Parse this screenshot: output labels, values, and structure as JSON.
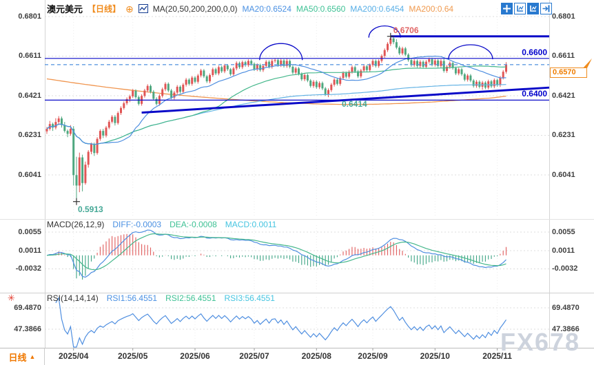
{
  "header": {
    "symbol": "澳元美元",
    "period": "【日线】",
    "ma_settings": "MA(20,50,200,200,0,0)",
    "ma20": "MA20:0.6524",
    "ma50": "MA50:0.6560",
    "ma200": "MA200:0.6454",
    "ma200b": "MA200:0.64",
    "icons": {
      "add": "⊕",
      "period_arrow": "▲",
      "burst": "✳"
    }
  },
  "toolbar": {
    "buttons": [
      "pan",
      "measure",
      "auto-scale",
      "shift-right"
    ]
  },
  "colors": {
    "up": "#e05555",
    "down": "#4ea77f",
    "ma20": "#4e8ee0",
    "ma50": "#44b78b",
    "ma200": "#62b2e4",
    "ma200b": "#f0954f",
    "annotation": "#0a0ac8",
    "dashed": "#4f8fde",
    "macd_diff": "#4e8ee0",
    "macd_dea": "#44b78b",
    "hist_pos": "#e05a5a",
    "hist_neg": "#3ca383",
    "rsi": "#4e8ee0",
    "accent_orange": "#f08c1e"
  },
  "chart_data": [
    {
      "type": "candlestick",
      "title": "澳元美元 日线",
      "y_ticks": [
        "0.6801",
        "0.6611",
        "0.6421",
        "0.6231",
        "0.6041"
      ],
      "x_ticks": [
        "2025/04",
        "2025/05",
        "2025/06",
        "2025/07",
        "2025/08",
        "2025/09",
        "2025/10",
        "2025/11"
      ],
      "tick_candle_indices": [
        9,
        29,
        50,
        70,
        91,
        110,
        131,
        152
      ],
      "ma_windows": {
        "ma20": 20,
        "ma50": 50,
        "ma200": 200
      },
      "ma200b_sampled": [
        0.6502,
        0.6481,
        0.6462,
        0.6445,
        0.643,
        0.6417,
        0.6406,
        0.6396,
        0.6388,
        0.6382,
        0.6379,
        0.638,
        0.6384,
        0.6391,
        0.64,
        0.641,
        0.6419
      ],
      "annotations": {
        "high": {
          "text": "0.6706",
          "price": 0.6706,
          "idx": 116
        },
        "low": {
          "text": "0.5913",
          "price": 0.5913,
          "idx": 10
        },
        "touch": {
          "text": "0.6414",
          "price": 0.6414,
          "idx": 100
        },
        "resistance": {
          "text": "0.6600",
          "price": 0.66
        },
        "support": {
          "text": "0.6400",
          "price": 0.64
        },
        "current": {
          "text": "0.6570",
          "price": 0.657
        },
        "trendline": {
          "from_idx": 32,
          "from_price": 0.634,
          "to_price": 0.646
        },
        "arcs": [
          {
            "idx": 79,
            "base_price": 0.6592,
            "rx": 31,
            "ry": 24
          },
          {
            "idx": 114,
            "base_price": 0.67,
            "rx": 23,
            "ry": 17
          },
          {
            "idx": 143,
            "base_price": 0.6596,
            "rx": 32,
            "ry": 21
          }
        ],
        "crosses": [
          {
            "idx": 116,
            "price": 0.6706
          },
          {
            "idx": 10,
            "price": 0.5913
          }
        ]
      },
      "candles": [
        [
          0.625,
          0.6271,
          0.6238,
          0.6262
        ],
        [
          0.6262,
          0.63,
          0.6254,
          0.6285
        ],
        [
          0.6285,
          0.6292,
          0.6252,
          0.6268
        ],
        [
          0.6268,
          0.6313,
          0.6259,
          0.6295
        ],
        [
          0.6295,
          0.6323,
          0.6281,
          0.6312
        ],
        [
          0.6312,
          0.6321,
          0.6268,
          0.628
        ],
        [
          0.628,
          0.6295,
          0.6244,
          0.6252
        ],
        [
          0.6252,
          0.6259,
          0.6222,
          0.6238
        ],
        [
          0.6238,
          0.628,
          0.6229,
          0.6262
        ],
        [
          0.6262,
          0.6275,
          0.599,
          0.604
        ],
        [
          0.604,
          0.6128,
          0.5913,
          0.599
        ],
        [
          0.599,
          0.6148,
          0.5958,
          0.6125
        ],
        [
          0.6125,
          0.6138,
          0.5962,
          0.6002
        ],
        [
          0.6002,
          0.6105,
          0.5994,
          0.609
        ],
        [
          0.609,
          0.616,
          0.6076,
          0.6152
        ],
        [
          0.6152,
          0.6196,
          0.614,
          0.6188
        ],
        [
          0.6188,
          0.6196,
          0.6132,
          0.6146
        ],
        [
          0.6146,
          0.6222,
          0.6138,
          0.6214
        ],
        [
          0.6214,
          0.626,
          0.6205,
          0.6252
        ],
        [
          0.6252,
          0.6262,
          0.6218,
          0.623
        ],
        [
          0.623,
          0.6276,
          0.6221,
          0.6268
        ],
        [
          0.6268,
          0.6305,
          0.626,
          0.6296
        ],
        [
          0.6296,
          0.6328,
          0.6288,
          0.632
        ],
        [
          0.632,
          0.6328,
          0.6278,
          0.629
        ],
        [
          0.629,
          0.6346,
          0.6282,
          0.6338
        ],
        [
          0.6338,
          0.637,
          0.6329,
          0.6362
        ],
        [
          0.6362,
          0.6394,
          0.6354,
          0.6385
        ],
        [
          0.6385,
          0.6413,
          0.6376,
          0.6405
        ],
        [
          0.6405,
          0.6426,
          0.639,
          0.6418
        ],
        [
          0.6418,
          0.6453,
          0.641,
          0.6445
        ],
        [
          0.6445,
          0.6452,
          0.6406,
          0.6414
        ],
        [
          0.6414,
          0.6421,
          0.6374,
          0.6382
        ],
        [
          0.6382,
          0.6428,
          0.6373,
          0.642
        ],
        [
          0.642,
          0.6454,
          0.6412,
          0.6446
        ],
        [
          0.6446,
          0.6476,
          0.6437,
          0.6468
        ],
        [
          0.6468,
          0.6475,
          0.6432,
          0.644
        ],
        [
          0.644,
          0.6448,
          0.6398,
          0.6406
        ],
        [
          0.6406,
          0.6414,
          0.6374,
          0.6382
        ],
        [
          0.6382,
          0.6428,
          0.6373,
          0.642
        ],
        [
          0.642,
          0.646,
          0.6412,
          0.6452
        ],
        [
          0.6452,
          0.6486,
          0.6443,
          0.6478
        ],
        [
          0.6478,
          0.6485,
          0.6438,
          0.6446
        ],
        [
          0.6446,
          0.6454,
          0.6404,
          0.6412
        ],
        [
          0.6412,
          0.6444,
          0.6403,
          0.6436
        ],
        [
          0.6436,
          0.6472,
          0.6428,
          0.6464
        ],
        [
          0.6464,
          0.6471,
          0.6432,
          0.644
        ],
        [
          0.644,
          0.6482,
          0.6431,
          0.6474
        ],
        [
          0.6474,
          0.6506,
          0.6465,
          0.6498
        ],
        [
          0.6498,
          0.6505,
          0.647,
          0.6478
        ],
        [
          0.6478,
          0.6516,
          0.6469,
          0.6508
        ],
        [
          0.6508,
          0.6515,
          0.648,
          0.6488
        ],
        [
          0.6488,
          0.6526,
          0.6479,
          0.6518
        ],
        [
          0.6518,
          0.655,
          0.6509,
          0.6542
        ],
        [
          0.6542,
          0.6549,
          0.6506,
          0.6514
        ],
        [
          0.6514,
          0.6521,
          0.6482,
          0.649
        ],
        [
          0.649,
          0.6528,
          0.6481,
          0.652
        ],
        [
          0.652,
          0.6556,
          0.6511,
          0.6548
        ],
        [
          0.6548,
          0.6555,
          0.652,
          0.6528
        ],
        [
          0.6528,
          0.6566,
          0.6519,
          0.6558
        ],
        [
          0.6558,
          0.6565,
          0.653,
          0.6538
        ],
        [
          0.6538,
          0.6574,
          0.6529,
          0.6566
        ],
        [
          0.6566,
          0.6573,
          0.654,
          0.6548
        ],
        [
          0.6548,
          0.6554,
          0.6516,
          0.6524
        ],
        [
          0.6524,
          0.656,
          0.6515,
          0.6552
        ],
        [
          0.6552,
          0.6586,
          0.6543,
          0.6578
        ],
        [
          0.6578,
          0.6585,
          0.655,
          0.6558
        ],
        [
          0.6558,
          0.659,
          0.6549,
          0.6582
        ],
        [
          0.6582,
          0.6589,
          0.656,
          0.6568
        ],
        [
          0.6568,
          0.6596,
          0.6559,
          0.6588
        ],
        [
          0.6588,
          0.6595,
          0.6566,
          0.6574
        ],
        [
          0.6574,
          0.6581,
          0.654,
          0.6548
        ],
        [
          0.6548,
          0.6576,
          0.6539,
          0.6568
        ],
        [
          0.6568,
          0.6575,
          0.6536,
          0.6544
        ],
        [
          0.6544,
          0.6572,
          0.6535,
          0.6564
        ],
        [
          0.6564,
          0.6592,
          0.6555,
          0.6584
        ],
        [
          0.6584,
          0.6591,
          0.6552,
          0.656
        ],
        [
          0.656,
          0.6596,
          0.6551,
          0.6588
        ],
        [
          0.6588,
          0.66,
          0.6579,
          0.6592
        ],
        [
          0.6592,
          0.6599,
          0.656,
          0.6568
        ],
        [
          0.6568,
          0.6598,
          0.6559,
          0.659
        ],
        [
          0.659,
          0.6597,
          0.6556,
          0.6564
        ],
        [
          0.6564,
          0.6598,
          0.6555,
          0.6588
        ],
        [
          0.6588,
          0.6595,
          0.6552,
          0.656
        ],
        [
          0.656,
          0.6567,
          0.6524,
          0.6532
        ],
        [
          0.6532,
          0.656,
          0.6523,
          0.6552
        ],
        [
          0.6552,
          0.6559,
          0.6518,
          0.6526
        ],
        [
          0.6526,
          0.6533,
          0.6492,
          0.65
        ],
        [
          0.65,
          0.6528,
          0.6491,
          0.652
        ],
        [
          0.652,
          0.6527,
          0.6486,
          0.6494
        ],
        [
          0.6494,
          0.6501,
          0.646,
          0.6468
        ],
        [
          0.6468,
          0.6496,
          0.6459,
          0.6488
        ],
        [
          0.6488,
          0.6495,
          0.6454,
          0.6462
        ],
        [
          0.6462,
          0.649,
          0.6453,
          0.6482
        ],
        [
          0.6482,
          0.6489,
          0.6448,
          0.6456
        ],
        [
          0.6456,
          0.6463,
          0.642,
          0.6428
        ],
        [
          0.6428,
          0.6456,
          0.6414,
          0.6448
        ],
        [
          0.6448,
          0.6482,
          0.6439,
          0.6474
        ],
        [
          0.6474,
          0.6506,
          0.6465,
          0.6498
        ],
        [
          0.6498,
          0.6505,
          0.647,
          0.6478
        ],
        [
          0.6478,
          0.6514,
          0.6469,
          0.6506
        ],
        [
          0.6506,
          0.6538,
          0.6497,
          0.653
        ],
        [
          0.653,
          0.6537,
          0.6504,
          0.6512
        ],
        [
          0.6512,
          0.6544,
          0.6503,
          0.6536
        ],
        [
          0.6536,
          0.6566,
          0.6527,
          0.6558
        ],
        [
          0.6558,
          0.6565,
          0.653,
          0.6538
        ],
        [
          0.6538,
          0.6545,
          0.6506,
          0.6514
        ],
        [
          0.6514,
          0.655,
          0.6505,
          0.6542
        ],
        [
          0.6542,
          0.657,
          0.6533,
          0.6562
        ],
        [
          0.6562,
          0.6569,
          0.6536,
          0.6544
        ],
        [
          0.6544,
          0.6576,
          0.6535,
          0.6568
        ],
        [
          0.6568,
          0.6596,
          0.6559,
          0.6588
        ],
        [
          0.6588,
          0.6595,
          0.6556,
          0.6564
        ],
        [
          0.6564,
          0.6596,
          0.6555,
          0.6588
        ],
        [
          0.6588,
          0.662,
          0.6579,
          0.6612
        ],
        [
          0.6612,
          0.6648,
          0.6603,
          0.664
        ],
        [
          0.664,
          0.6678,
          0.6631,
          0.667
        ],
        [
          0.667,
          0.6706,
          0.666,
          0.6696
        ],
        [
          0.6696,
          0.6702,
          0.6668,
          0.6678
        ],
        [
          0.6678,
          0.6692,
          0.6644,
          0.6652
        ],
        [
          0.6652,
          0.666,
          0.6616,
          0.6624
        ],
        [
          0.6624,
          0.6656,
          0.6615,
          0.6648
        ],
        [
          0.6648,
          0.6655,
          0.661,
          0.6618
        ],
        [
          0.6618,
          0.6625,
          0.6584,
          0.6592
        ],
        [
          0.6592,
          0.6599,
          0.656,
          0.6568
        ],
        [
          0.6568,
          0.6596,
          0.6559,
          0.6588
        ],
        [
          0.6588,
          0.6595,
          0.6556,
          0.6564
        ],
        [
          0.6564,
          0.6592,
          0.6555,
          0.6584
        ],
        [
          0.6584,
          0.6591,
          0.6552,
          0.656
        ],
        [
          0.656,
          0.6592,
          0.6551,
          0.6584
        ],
        [
          0.6584,
          0.6604,
          0.6575,
          0.6596
        ],
        [
          0.6596,
          0.6603,
          0.6562,
          0.657
        ],
        [
          0.657,
          0.6598,
          0.6561,
          0.659
        ],
        [
          0.659,
          0.6597,
          0.6556,
          0.6564
        ],
        [
          0.6564,
          0.6596,
          0.6555,
          0.6588
        ],
        [
          0.6588,
          0.6598,
          0.6532,
          0.654
        ],
        [
          0.654,
          0.6568,
          0.6531,
          0.656
        ],
        [
          0.656,
          0.6586,
          0.6551,
          0.6578
        ],
        [
          0.6578,
          0.6585,
          0.6546,
          0.6554
        ],
        [
          0.6554,
          0.6561,
          0.652,
          0.6528
        ],
        [
          0.6528,
          0.6556,
          0.6519,
          0.6548
        ],
        [
          0.6548,
          0.6555,
          0.6516,
          0.6524
        ],
        [
          0.6524,
          0.6531,
          0.649,
          0.6498
        ],
        [
          0.6498,
          0.6526,
          0.6489,
          0.6518
        ],
        [
          0.6518,
          0.6525,
          0.6486,
          0.6494
        ],
        [
          0.6494,
          0.6501,
          0.646,
          0.6468
        ],
        [
          0.6468,
          0.6496,
          0.6459,
          0.6488
        ],
        [
          0.6488,
          0.6495,
          0.6456,
          0.6464
        ],
        [
          0.6464,
          0.6492,
          0.645,
          0.6484
        ],
        [
          0.6484,
          0.6491,
          0.6452,
          0.646
        ],
        [
          0.646,
          0.6498,
          0.6451,
          0.649
        ],
        [
          0.649,
          0.6497,
          0.6458,
          0.6466
        ],
        [
          0.6466,
          0.6504,
          0.6457,
          0.6496
        ],
        [
          0.6496,
          0.6503,
          0.6464,
          0.6472
        ],
        [
          0.6472,
          0.6516,
          0.6463,
          0.6508
        ],
        [
          0.6508,
          0.6544,
          0.6499,
          0.6536
        ],
        [
          0.6536,
          0.6582,
          0.6527,
          0.657
        ]
      ]
    },
    {
      "type": "macd",
      "params_label": "MACD(26,12,9)",
      "diff_label": "DIFF:-0.0003",
      "dea_label": "DEA:-0.0008",
      "macd_label": "MACD:0.0011",
      "y_ticks": [
        "0.0055",
        "0.0011",
        "-0.0032"
      ],
      "fast": 12,
      "slow": 26,
      "signal": 9
    },
    {
      "type": "rsi",
      "params_label": "RSI(14,14,14)",
      "rsi1_label": "RSI1:56.4551",
      "rsi2_label": "RSI2:56.4551",
      "rsi3_label": "RSI3:56.4551",
      "y_ticks": [
        "69.4870",
        "47.3866"
      ],
      "period": 14
    }
  ],
  "footer": {
    "period_button": "日线"
  },
  "watermark": "FX678"
}
